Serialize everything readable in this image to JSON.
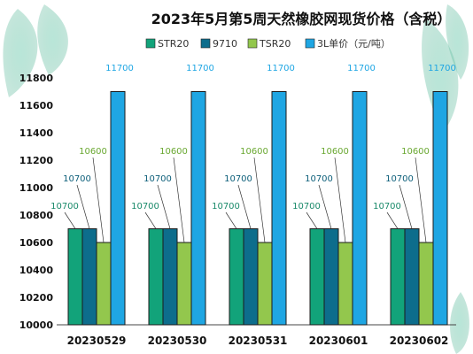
{
  "chart_data": {
    "type": "bar",
    "title": "2023年5月第5周天然橡胶网现货价格（含税）",
    "categories": [
      "20230529",
      "20230530",
      "20230531",
      "20230601",
      "20230602"
    ],
    "series": [
      {
        "name": "STR20",
        "values": [
          10700,
          10700,
          10700,
          10700,
          10700
        ],
        "color": "#12a37a"
      },
      {
        "name": "9710",
        "values": [
          10700,
          10700,
          10700,
          10700,
          10700
        ],
        "color": "#0d6d8c"
      },
      {
        "name": "TSR20",
        "values": [
          10600,
          10600,
          10600,
          10600,
          10600
        ],
        "color": "#93c74d"
      },
      {
        "name": "3L单价（元/吨）",
        "values": [
          11700,
          11700,
          11700,
          11700,
          11700
        ],
        "color": "#1fa6e3"
      }
    ],
    "ylim": [
      10000,
      11800
    ],
    "yticks": [
      "10000",
      "10200",
      "10400",
      "10600",
      "10800",
      "11000",
      "11200",
      "11400",
      "11600",
      "11800"
    ],
    "grid": false,
    "legend": "top"
  }
}
